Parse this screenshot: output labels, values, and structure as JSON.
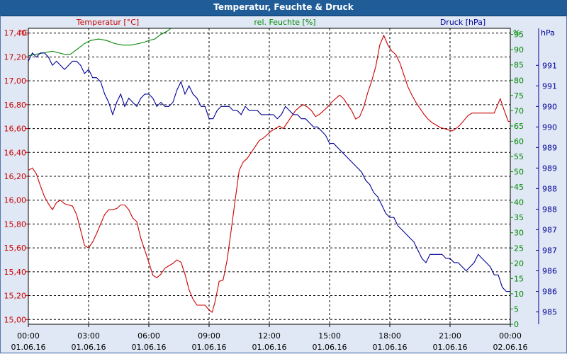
{
  "window": {
    "title": "Temperatur, Feuchte & Druck"
  },
  "chart_data": {
    "type": "line",
    "title": "Temperatur, Feuchte & Druck",
    "grid": true,
    "colors": {
      "temperature": "#cc0000",
      "humidity": "#008800",
      "pressure": "#000099",
      "grid": "#000000",
      "plot_bg": "#ffffff"
    },
    "x_ticks": [
      {
        "time": "00:00",
        "date": "01.06.16"
      },
      {
        "time": "03:00",
        "date": "01.06.16"
      },
      {
        "time": "06:00",
        "date": "01.06.16"
      },
      {
        "time": "09:00",
        "date": "01.06.16"
      },
      {
        "time": "12:00",
        "date": "01.06.16"
      },
      {
        "time": "15:00",
        "date": "01.06.16"
      },
      {
        "time": "18:00",
        "date": "01.06.16"
      },
      {
        "time": "21:00",
        "date": "01.06.16"
      },
      {
        "time": "00:00",
        "date": "02.06.16"
      }
    ],
    "x_range_hours": [
      0,
      24
    ],
    "axes": {
      "temperature": {
        "label": "Temperatur [°C]",
        "unit": "°C",
        "range": [
          14.96,
          17.44
        ],
        "ticks": [
          "15,00",
          "15,20",
          "15,40",
          "15,60",
          "15,80",
          "16,00",
          "16,20",
          "16,40",
          "16,60",
          "16,80",
          "17,00",
          "17,20",
          "17,40"
        ],
        "tick_values": [
          15.0,
          15.2,
          15.4,
          15.6,
          15.8,
          16.0,
          16.2,
          16.4,
          16.6,
          16.8,
          17.0,
          17.2,
          17.4
        ]
      },
      "humidity": {
        "label": "rel. Feuchte [%]",
        "unit": "%",
        "range": [
          0,
          97
        ],
        "ticks": [
          "0",
          "5",
          "10",
          "15",
          "20",
          "25",
          "30",
          "35",
          "40",
          "45",
          "50",
          "55",
          "60",
          "65",
          "70",
          "75",
          "80",
          "85",
          "90",
          "95"
        ],
        "tick_values": [
          0,
          5,
          10,
          15,
          20,
          25,
          30,
          35,
          40,
          45,
          50,
          55,
          60,
          65,
          70,
          75,
          80,
          85,
          90,
          95
        ]
      },
      "pressure": {
        "label": "Druck [hPa]",
        "unit": "hPa",
        "range": [
          984.7,
          991.9
        ],
        "ticks": [
          "985",
          "986",
          "986",
          "987",
          "987",
          "988",
          "988",
          "989",
          "989",
          "990",
          "990",
          "991",
          "991"
        ],
        "tick_values": [
          985.0,
          985.5,
          986.0,
          986.5,
          987.0,
          987.5,
          988.0,
          988.5,
          989.0,
          989.5,
          990.0,
          990.5,
          991.0
        ]
      }
    },
    "series": [
      {
        "name": "Temperatur [°C]",
        "axis": "temperature",
        "points": [
          [
            0.0,
            16.25
          ],
          [
            0.2,
            16.27
          ],
          [
            0.4,
            16.22
          ],
          [
            0.6,
            16.12
          ],
          [
            0.8,
            16.03
          ],
          [
            1.0,
            15.97
          ],
          [
            1.2,
            15.92
          ],
          [
            1.4,
            15.98
          ],
          [
            1.6,
            16.0
          ],
          [
            1.8,
            15.97
          ],
          [
            2.0,
            15.96
          ],
          [
            2.2,
            15.95
          ],
          [
            2.4,
            15.88
          ],
          [
            2.6,
            15.75
          ],
          [
            2.8,
            15.62
          ],
          [
            3.0,
            15.6
          ],
          [
            3.2,
            15.65
          ],
          [
            3.4,
            15.72
          ],
          [
            3.6,
            15.8
          ],
          [
            3.8,
            15.88
          ],
          [
            4.0,
            15.92
          ],
          [
            4.2,
            15.92
          ],
          [
            4.4,
            15.93
          ],
          [
            4.6,
            15.96
          ],
          [
            4.8,
            15.96
          ],
          [
            5.0,
            15.92
          ],
          [
            5.2,
            15.85
          ],
          [
            5.4,
            15.82
          ],
          [
            5.6,
            15.68
          ],
          [
            5.8,
            15.58
          ],
          [
            6.0,
            15.48
          ],
          [
            6.2,
            15.37
          ],
          [
            6.4,
            15.35
          ],
          [
            6.6,
            15.38
          ],
          [
            6.8,
            15.43
          ],
          [
            7.0,
            15.45
          ],
          [
            7.2,
            15.47
          ],
          [
            7.4,
            15.5
          ],
          [
            7.6,
            15.48
          ],
          [
            7.8,
            15.38
          ],
          [
            8.0,
            15.25
          ],
          [
            8.2,
            15.17
          ],
          [
            8.4,
            15.12
          ],
          [
            8.6,
            15.12
          ],
          [
            8.8,
            15.12
          ],
          [
            9.0,
            15.08
          ],
          [
            9.15,
            15.06
          ],
          [
            9.3,
            15.15
          ],
          [
            9.5,
            15.32
          ],
          [
            9.7,
            15.33
          ],
          [
            9.9,
            15.5
          ],
          [
            10.1,
            15.75
          ],
          [
            10.3,
            16.0
          ],
          [
            10.5,
            16.25
          ],
          [
            10.7,
            16.32
          ],
          [
            10.9,
            16.35
          ],
          [
            11.1,
            16.4
          ],
          [
            11.3,
            16.45
          ],
          [
            11.5,
            16.5
          ],
          [
            11.7,
            16.52
          ],
          [
            11.9,
            16.55
          ],
          [
            12.1,
            16.58
          ],
          [
            12.3,
            16.6
          ],
          [
            12.5,
            16.62
          ],
          [
            12.7,
            16.6
          ],
          [
            12.9,
            16.65
          ],
          [
            13.1,
            16.7
          ],
          [
            13.3,
            16.75
          ],
          [
            13.5,
            16.78
          ],
          [
            13.7,
            16.8
          ],
          [
            13.9,
            16.78
          ],
          [
            14.1,
            16.75
          ],
          [
            14.3,
            16.7
          ],
          [
            14.5,
            16.72
          ],
          [
            14.7,
            16.75
          ],
          [
            14.9,
            16.78
          ],
          [
            15.1,
            16.82
          ],
          [
            15.3,
            16.85
          ],
          [
            15.5,
            16.88
          ],
          [
            15.7,
            16.85
          ],
          [
            15.9,
            16.8
          ],
          [
            16.1,
            16.75
          ],
          [
            16.3,
            16.68
          ],
          [
            16.5,
            16.7
          ],
          [
            16.7,
            16.78
          ],
          [
            16.9,
            16.9
          ],
          [
            17.1,
            17.0
          ],
          [
            17.3,
            17.12
          ],
          [
            17.5,
            17.3
          ],
          [
            17.7,
            17.38
          ],
          [
            17.9,
            17.3
          ],
          [
            18.1,
            17.25
          ],
          [
            18.3,
            17.22
          ],
          [
            18.5,
            17.15
          ],
          [
            18.7,
            17.05
          ],
          [
            18.9,
            16.95
          ],
          [
            19.1,
            16.88
          ],
          [
            19.3,
            16.82
          ],
          [
            19.5,
            16.77
          ],
          [
            19.7,
            16.72
          ],
          [
            19.9,
            16.68
          ],
          [
            20.1,
            16.65
          ],
          [
            20.3,
            16.63
          ],
          [
            20.5,
            16.61
          ],
          [
            20.7,
            16.6
          ],
          [
            20.9,
            16.59
          ],
          [
            21.1,
            16.58
          ],
          [
            21.3,
            16.6
          ],
          [
            21.5,
            16.63
          ],
          [
            21.7,
            16.67
          ],
          [
            21.9,
            16.71
          ],
          [
            22.1,
            16.73
          ],
          [
            22.5,
            16.73
          ],
          [
            22.9,
            16.73
          ],
          [
            23.2,
            16.73
          ],
          [
            23.5,
            16.85
          ],
          [
            23.7,
            16.75
          ],
          [
            23.9,
            16.66
          ],
          [
            24.0,
            16.66
          ]
        ]
      },
      {
        "name": "rel. Feuchte [%]",
        "axis": "humidity",
        "points": [
          [
            0.0,
            88.0
          ],
          [
            0.4,
            88.5
          ],
          [
            0.8,
            89.0
          ],
          [
            1.2,
            89.5
          ],
          [
            1.5,
            89.0
          ],
          [
            1.8,
            88.5
          ],
          [
            2.1,
            88.5
          ],
          [
            2.4,
            90.0
          ],
          [
            2.8,
            92.0
          ],
          [
            3.1,
            93.0
          ],
          [
            3.5,
            93.5
          ],
          [
            3.9,
            93.0
          ],
          [
            4.3,
            92.0
          ],
          [
            4.7,
            91.5
          ],
          [
            5.1,
            91.5
          ],
          [
            5.5,
            92.0
          ],
          [
            5.8,
            92.5
          ],
          [
            6.0,
            93.0
          ],
          [
            6.3,
            93.5
          ],
          [
            6.6,
            95.0
          ],
          [
            6.9,
            96.0
          ],
          [
            7.1,
            97.0
          ]
        ]
      },
      {
        "name": "Druck [hPa]",
        "axis": "pressure",
        "points": [
          [
            0.0,
            991.1
          ],
          [
            0.2,
            991.3
          ],
          [
            0.4,
            991.2
          ],
          [
            0.6,
            991.3
          ],
          [
            0.8,
            991.3
          ],
          [
            1.0,
            991.2
          ],
          [
            1.2,
            991.0
          ],
          [
            1.4,
            991.1
          ],
          [
            1.6,
            991.0
          ],
          [
            1.8,
            990.9
          ],
          [
            2.0,
            991.0
          ],
          [
            2.2,
            991.1
          ],
          [
            2.4,
            991.1
          ],
          [
            2.6,
            991.0
          ],
          [
            2.8,
            990.8
          ],
          [
            3.0,
            990.9
          ],
          [
            3.2,
            990.7
          ],
          [
            3.4,
            990.7
          ],
          [
            3.6,
            990.6
          ],
          [
            3.8,
            990.3
          ],
          [
            4.0,
            990.1
          ],
          [
            4.2,
            989.8
          ],
          [
            4.4,
            990.1
          ],
          [
            4.6,
            990.3
          ],
          [
            4.8,
            990.0
          ],
          [
            5.0,
            990.2
          ],
          [
            5.2,
            990.1
          ],
          [
            5.4,
            990.0
          ],
          [
            5.6,
            990.2
          ],
          [
            5.8,
            990.3
          ],
          [
            6.0,
            990.3
          ],
          [
            6.2,
            990.2
          ],
          [
            6.4,
            990.0
          ],
          [
            6.6,
            990.1
          ],
          [
            6.8,
            990.0
          ],
          [
            7.0,
            990.0
          ],
          [
            7.2,
            990.1
          ],
          [
            7.4,
            990.4
          ],
          [
            7.6,
            990.6
          ],
          [
            7.8,
            990.3
          ],
          [
            8.0,
            990.5
          ],
          [
            8.2,
            990.3
          ],
          [
            8.4,
            990.2
          ],
          [
            8.6,
            990.0
          ],
          [
            8.8,
            990.0
          ],
          [
            9.0,
            989.7
          ],
          [
            9.2,
            989.7
          ],
          [
            9.4,
            989.9
          ],
          [
            9.6,
            990.0
          ],
          [
            9.8,
            990.0
          ],
          [
            10.0,
            990.0
          ],
          [
            10.2,
            989.9
          ],
          [
            10.4,
            989.9
          ],
          [
            10.6,
            989.8
          ],
          [
            10.8,
            990.0
          ],
          [
            11.0,
            989.9
          ],
          [
            11.2,
            989.9
          ],
          [
            11.4,
            989.9
          ],
          [
            11.6,
            989.8
          ],
          [
            11.8,
            989.8
          ],
          [
            12.0,
            989.8
          ],
          [
            12.2,
            989.8
          ],
          [
            12.4,
            989.7
          ],
          [
            12.6,
            989.8
          ],
          [
            12.8,
            990.0
          ],
          [
            13.0,
            989.9
          ],
          [
            13.2,
            989.8
          ],
          [
            13.4,
            989.8
          ],
          [
            13.6,
            989.7
          ],
          [
            13.8,
            989.7
          ],
          [
            14.0,
            989.6
          ],
          [
            14.2,
            989.5
          ],
          [
            14.4,
            989.5
          ],
          [
            14.6,
            989.4
          ],
          [
            14.8,
            989.3
          ],
          [
            15.0,
            989.1
          ],
          [
            15.2,
            989.1
          ],
          [
            15.4,
            989.0
          ],
          [
            15.6,
            988.9
          ],
          [
            15.8,
            988.8
          ],
          [
            16.0,
            988.7
          ],
          [
            16.2,
            988.6
          ],
          [
            16.4,
            988.5
          ],
          [
            16.6,
            988.4
          ],
          [
            16.8,
            988.2
          ],
          [
            17.0,
            988.1
          ],
          [
            17.2,
            987.9
          ],
          [
            17.4,
            987.8
          ],
          [
            17.6,
            987.6
          ],
          [
            17.8,
            987.4
          ],
          [
            18.0,
            987.3
          ],
          [
            18.2,
            987.3
          ],
          [
            18.4,
            987.1
          ],
          [
            18.6,
            987.0
          ],
          [
            18.8,
            986.9
          ],
          [
            19.0,
            986.8
          ],
          [
            19.2,
            986.7
          ],
          [
            19.4,
            986.5
          ],
          [
            19.6,
            986.3
          ],
          [
            19.8,
            986.2
          ],
          [
            20.0,
            986.4
          ],
          [
            20.2,
            986.4
          ],
          [
            20.4,
            986.4
          ],
          [
            20.6,
            986.4
          ],
          [
            20.8,
            986.3
          ],
          [
            21.0,
            986.3
          ],
          [
            21.2,
            986.2
          ],
          [
            21.4,
            986.2
          ],
          [
            21.6,
            986.1
          ],
          [
            21.8,
            986.0
          ],
          [
            22.0,
            986.1
          ],
          [
            22.2,
            986.2
          ],
          [
            22.4,
            986.4
          ],
          [
            22.6,
            986.3
          ],
          [
            22.8,
            986.2
          ],
          [
            23.0,
            986.1
          ],
          [
            23.2,
            985.9
          ],
          [
            23.4,
            985.9
          ],
          [
            23.6,
            985.6
          ],
          [
            23.8,
            985.5
          ],
          [
            24.0,
            985.5
          ]
        ]
      }
    ]
  }
}
